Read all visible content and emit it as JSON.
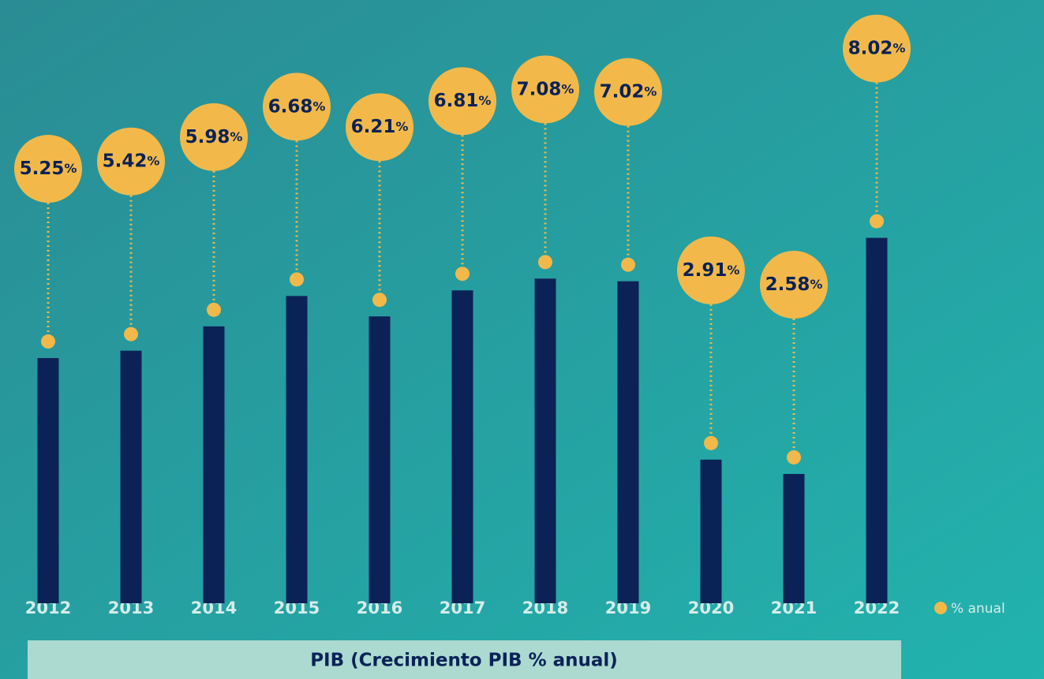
{
  "chart_data": {
    "type": "bar",
    "title": "PIB (Crecimiento PIB % anual)",
    "categories": [
      "2012",
      "2013",
      "2014",
      "2015",
      "2016",
      "2017",
      "2018",
      "2019",
      "2020",
      "2021",
      "2022"
    ],
    "series": [
      {
        "name": "% anual",
        "color": "#f2b94a",
        "values": [
          5.25,
          5.42,
          5.98,
          6.68,
          6.21,
          6.81,
          7.08,
          7.02,
          2.91,
          2.58,
          8.02
        ],
        "value_labels": [
          "5.25%",
          "5.42%",
          "5.98%",
          "6.68%",
          "6.21%",
          "6.81%",
          "7.08%",
          "7.02%",
          "2.91%",
          "2.58%",
          "8.02%"
        ]
      }
    ],
    "bar_color": "#0b2257",
    "ylim": [
      -0.4,
      13.5
    ]
  }
}
